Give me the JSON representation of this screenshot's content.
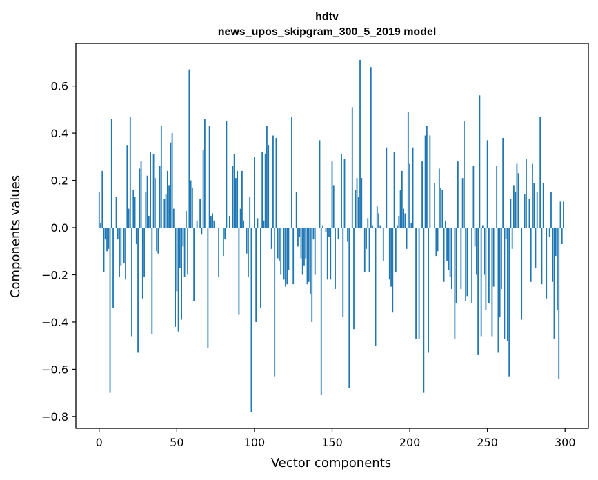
{
  "chart_data": {
    "type": "bar",
    "title": "hdtv",
    "subtitle": "news_upos_skipgram_300_5_2019 model",
    "xlabel": "Vector components",
    "ylabel": "Components values",
    "xlim": [
      -15,
      315
    ],
    "ylim": [
      -0.85,
      0.78
    ],
    "xticks": [
      0,
      50,
      100,
      150,
      200,
      250,
      300
    ],
    "yticks": [
      -0.8,
      -0.6,
      -0.4,
      -0.2,
      0.0,
      0.2,
      0.4,
      0.6
    ],
    "ytick_labels": [
      "−0.8",
      "−0.6",
      "−0.4",
      "−0.2",
      "0.0",
      "0.2",
      "0.4",
      "0.6"
    ],
    "grid": false,
    "bar_color": "#1f77b4",
    "values": [
      0.15,
      0.02,
      0.24,
      -0.19,
      -0.05,
      -0.1,
      -0.09,
      -0.7,
      0.46,
      -0.34,
      0.0,
      0.13,
      -0.05,
      -0.21,
      -0.16,
      0.0,
      -0.15,
      -0.22,
      0.35,
      0.08,
      0.47,
      -0.46,
      0.16,
      0.13,
      -0.07,
      -0.53,
      0.25,
      0.28,
      -0.3,
      -0.21,
      0.15,
      0.22,
      0.05,
      0.32,
      -0.45,
      0.31,
      0.21,
      -0.1,
      -0.11,
      0.26,
      0.43,
      0.0,
      0.12,
      0.14,
      0.24,
      0.18,
      0.36,
      0.4,
      0.08,
      -0.42,
      -0.27,
      -0.44,
      -0.17,
      -0.39,
      -0.08,
      -0.21,
      0.07,
      -0.2,
      0.67,
      0.2,
      0.17,
      -0.31,
      0.0,
      0.03,
      0.0,
      0.12,
      -0.03,
      0.33,
      0.46,
      0.0,
      -0.51,
      0.43,
      0.05,
      0.06,
      0.03,
      0.0,
      0.0,
      -0.21,
      0.0,
      0.0,
      -0.12,
      -0.05,
      0.45,
      0.0,
      0.05,
      0.0,
      0.26,
      0.31,
      0.21,
      0.24,
      -0.37,
      0.08,
      0.24,
      0.03,
      0.0,
      -0.11,
      -0.21,
      0.13,
      -0.78,
      0.0,
      0.3,
      -0.4,
      0.04,
      0.0,
      -0.34,
      0.32,
      0.03,
      0.31,
      0.43,
      0.35,
      0.0,
      -0.09,
      0.39,
      -0.63,
      0.38,
      -0.13,
      -0.14,
      -0.2,
      0.0,
      -0.22,
      -0.25,
      -0.24,
      -0.18,
      0.0,
      0.47,
      -0.24,
      0.0,
      0.15,
      -0.08,
      -0.04,
      -0.13,
      -0.2,
      -0.16,
      -0.13,
      -0.24,
      -0.23,
      -0.28,
      -0.4,
      -0.05,
      -0.2,
      0.0,
      0.0,
      0.37,
      -0.71,
      0.01,
      0.0,
      -0.02,
      -0.22,
      -0.04,
      -0.22,
      0.28,
      0.18,
      -0.26,
      0.0,
      -0.05,
      0.0,
      0.31,
      -0.38,
      0.29,
      0.0,
      -0.06,
      -0.68,
      0.0,
      0.51,
      -0.43,
      0.16,
      0.21,
      0.13,
      0.71,
      0.21,
      0.0,
      -0.19,
      -0.09,
      0.04,
      -0.19,
      0.68,
      0.01,
      0.0,
      -0.5,
      0.09,
      0.06,
      0.01,
      0.0,
      -0.14,
      0.0,
      0.34,
      0.0,
      -0.22,
      -0.25,
      -0.36,
      0.32,
      -0.19,
      0.01,
      0.05,
      0.16,
      0.24,
      0.08,
      0.06,
      -0.09,
      0.49,
      0.27,
      0.02,
      0.34,
      0.0,
      -0.47,
      0.0,
      -0.47,
      0.0,
      0.28,
      -0.7,
      0.39,
      0.43,
      -0.53,
      0.39,
      0.0,
      0.0,
      0.19,
      -0.12,
      -0.1,
      0.25,
      0.17,
      0.16,
      -0.23,
      0.03,
      -0.14,
      -0.18,
      -0.21,
      -0.26,
      0.0,
      -0.47,
      -0.32,
      0.28,
      0.0,
      -0.26,
      0.21,
      0.45,
      -0.31,
      -0.29,
      0.0,
      0.0,
      -0.32,
      0.26,
      -0.08,
      -0.2,
      -0.54,
      0.56,
      -0.46,
      0.01,
      -0.2,
      -0.35,
      0.37,
      -0.32,
      0.0,
      -0.46,
      -0.25,
      0.0,
      0.26,
      -0.53,
      -0.38,
      -0.26,
      0.38,
      -0.47,
      -0.05,
      -0.48,
      -0.63,
      0.12,
      -0.09,
      0.18,
      0.15,
      0.27,
      0.23,
      0.0,
      -0.39,
      0.0,
      0.14,
      0.29,
      0.0,
      0.12,
      -0.23,
      0.27,
      0.19,
      -0.17,
      0.15,
      0.0,
      0.47,
      -0.24,
      0.19,
      0.0,
      -0.3,
      0.0,
      -0.04,
      0.15,
      -0.23,
      -0.47,
      -0.12,
      -0.35,
      -0.64,
      0.11,
      -0.07,
      0.11
    ]
  }
}
